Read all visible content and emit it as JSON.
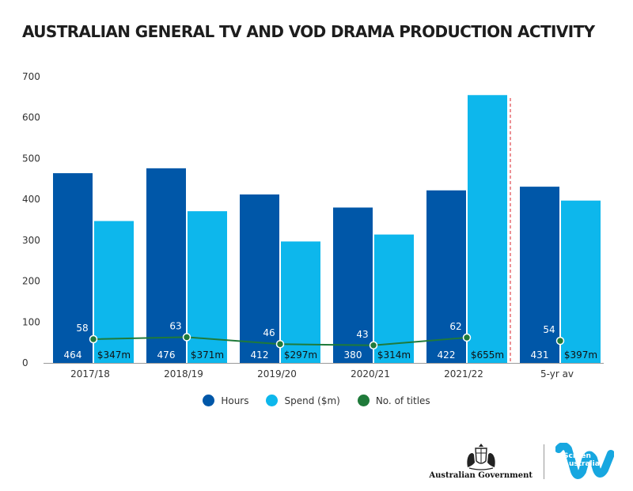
{
  "chart_data": {
    "type": "bar",
    "title": "AUSTRALIAN GENERAL TV AND VOD DRAMA PRODUCTION ACTIVITY",
    "categories": [
      "2017/18",
      "2018/19",
      "2019/20",
      "2020/21",
      "2021/22",
      "5-yr av"
    ],
    "ylim": [
      0,
      700
    ],
    "yticks": [
      0,
      100,
      200,
      300,
      400,
      500,
      600,
      700
    ],
    "grid": false,
    "legend_position": "bottom",
    "series": [
      {
        "name": "Hours",
        "type": "bar",
        "color": "#0057a8",
        "values": [
          464,
          476,
          412,
          380,
          422,
          431
        ],
        "labels": [
          "464",
          "476",
          "412",
          "380",
          "422",
          "431"
        ]
      },
      {
        "name": "Spend ($m)",
        "type": "bar",
        "color": "#0db7ec",
        "values": [
          347,
          371,
          297,
          314,
          655,
          397
        ],
        "labels": [
          "$347m",
          "$371m",
          "$297m",
          "$314m",
          "$655m",
          "$397m"
        ]
      },
      {
        "name": "No. of titles",
        "type": "line",
        "color": "#1f7a3a",
        "values": [
          58,
          63,
          46,
          43,
          62,
          54
        ],
        "labels": [
          "58",
          "63",
          "46",
          "43",
          "62",
          "54"
        ]
      }
    ],
    "annotations": [
      {
        "type": "vertical-dashed-line",
        "position": "between 2021/22 and 5-yr av",
        "color": "#d9222a"
      }
    ]
  },
  "legend": [
    {
      "label": "Hours",
      "color": "#0057a8"
    },
    {
      "label": "Spend ($m)",
      "color": "#0db7ec"
    },
    {
      "label": "No. of titles",
      "color": "#1f7a3a"
    }
  ],
  "logos": {
    "government_text": "Australian Government",
    "screen_australia_text_1": "Screen",
    "screen_australia_text_2": "Australia"
  }
}
